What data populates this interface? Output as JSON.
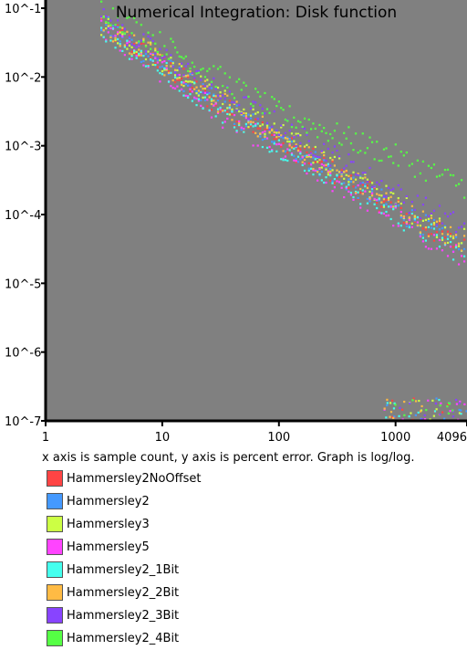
{
  "chart_data": {
    "type": "scatter",
    "title": "Numerical Integration: Disk function",
    "caption": "x axis is sample count, y axis is percent error. Graph is log/log.",
    "x_scale": "log",
    "y_scale": "log",
    "xlim": [
      1,
      4096
    ],
    "ylim": [
      1e-07,
      0.1
    ],
    "plot_background": "#808080",
    "grid": false,
    "legend_placement": "below",
    "x_ticks": [
      {
        "value": 1,
        "label": "1"
      },
      {
        "value": 10,
        "label": "10"
      },
      {
        "value": 100,
        "label": "100"
      },
      {
        "value": 1000,
        "label": "1000"
      },
      {
        "value": 4096,
        "label": "4096"
      }
    ],
    "y_ticks": [
      {
        "value": 0.1,
        "label": "10^-1"
      },
      {
        "value": 0.01,
        "label": "10^-2"
      },
      {
        "value": 0.001,
        "label": "10^-3"
      },
      {
        "value": 0.0001,
        "label": "10^-4"
      },
      {
        "value": 1e-05,
        "label": "10^-5"
      },
      {
        "value": 1e-06,
        "label": "10^-6"
      },
      {
        "value": 1e-07,
        "label": "10^-7"
      }
    ],
    "series": [
      {
        "name": "Hammersley2NoOffset",
        "color": "#ff4444",
        "points": [
          [
            3,
            0.06
          ],
          [
            10,
            0.015
          ],
          [
            30,
            0.004
          ],
          [
            100,
            0.0012
          ],
          [
            300,
            0.0004
          ],
          [
            1000,
            0.00012
          ],
          [
            4096,
            3e-05
          ]
        ]
      },
      {
        "name": "Hammersley2",
        "color": "#4499ff",
        "points": [
          [
            3,
            0.06
          ],
          [
            10,
            0.015
          ],
          [
            30,
            0.004
          ],
          [
            100,
            0.0012
          ],
          [
            300,
            0.0004
          ],
          [
            1000,
            0.00012
          ],
          [
            4096,
            3e-05
          ]
        ]
      },
      {
        "name": "Hammersley3",
        "color": "#ccff44",
        "points": [
          [
            3,
            0.06
          ],
          [
            10,
            0.018
          ],
          [
            30,
            0.005
          ],
          [
            100,
            0.0015
          ],
          [
            300,
            0.0005
          ],
          [
            1000,
            0.00015
          ],
          [
            4096,
            4e-05
          ]
        ]
      },
      {
        "name": "Hammersley5",
        "color": "#ff44ff",
        "points": [
          [
            3,
            0.05
          ],
          [
            10,
            0.012
          ],
          [
            30,
            0.003
          ],
          [
            100,
            0.0009
          ],
          [
            300,
            0.0003
          ],
          [
            1000,
            9e-05
          ],
          [
            4096,
            2e-05
          ]
        ]
      },
      {
        "name": "Hammersley2_1Bit",
        "color": "#44ffee",
        "points": [
          [
            3,
            0.05
          ],
          [
            10,
            0.013
          ],
          [
            30,
            0.0035
          ],
          [
            100,
            0.001
          ],
          [
            300,
            0.00035
          ],
          [
            1000,
            0.0001
          ],
          [
            4096,
            2.5e-05
          ]
        ]
      },
      {
        "name": "Hammersley2_2Bit",
        "color": "#ffbb44",
        "points": [
          [
            3,
            0.06
          ],
          [
            10,
            0.016
          ],
          [
            30,
            0.0045
          ],
          [
            100,
            0.0013
          ],
          [
            300,
            0.00045
          ],
          [
            1000,
            0.00013
          ],
          [
            4096,
            3.5e-05
          ]
        ]
      },
      {
        "name": "Hammersley2_3Bit",
        "color": "#8844ff",
        "points": [
          [
            3,
            0.07
          ],
          [
            10,
            0.02
          ],
          [
            30,
            0.006
          ],
          [
            100,
            0.002
          ],
          [
            300,
            0.0007
          ],
          [
            1000,
            0.0002
          ],
          [
            4096,
            6e-05
          ]
        ]
      },
      {
        "name": "Hammersley2_4Bit",
        "color": "#55ff44",
        "points": [
          [
            3,
            0.1
          ],
          [
            10,
            0.03
          ],
          [
            30,
            0.01
          ],
          [
            100,
            0.003
          ],
          [
            300,
            0.0015
          ],
          [
            1000,
            0.0007
          ],
          [
            4096,
            0.00025
          ]
        ]
      }
    ]
  }
}
